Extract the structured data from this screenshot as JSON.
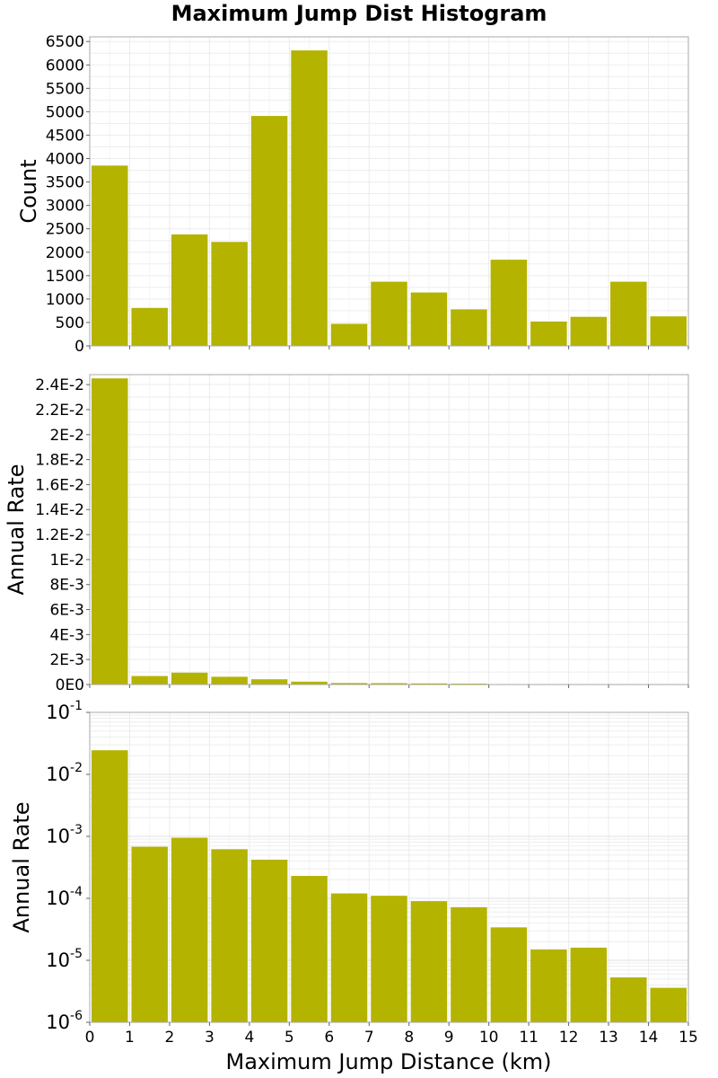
{
  "chart_data": [
    {
      "type": "bar",
      "panel": "count",
      "title": "Maximum Jump Dist Histogram",
      "ylabel": "Count",
      "xlim": [
        0,
        15
      ],
      "ylim": [
        0,
        6600
      ],
      "yscale": "linear",
      "grid": true,
      "color": "#b3b300",
      "bin_width": 1,
      "x": [
        0.5,
        1.5,
        2.5,
        3.5,
        4.5,
        5.5,
        6.5,
        7.5,
        8.5,
        9.5,
        10.5,
        11.5,
        12.5,
        13.5,
        14.5
      ],
      "values": [
        3850,
        810,
        2380,
        2220,
        4910,
        6310,
        470,
        1370,
        1140,
        780,
        1840,
        520,
        620,
        1370,
        630
      ],
      "y_ticks": [
        0,
        500,
        1000,
        1500,
        2000,
        2500,
        3000,
        3500,
        4000,
        4500,
        5000,
        5500,
        6000,
        6500
      ],
      "y_tick_labels": [
        "0",
        "500",
        "1000",
        "1500",
        "2000",
        "2500",
        "3000",
        "3500",
        "4000",
        "4500",
        "5000",
        "5500",
        "6000",
        "6500"
      ]
    },
    {
      "type": "bar",
      "panel": "rate-linear",
      "ylabel": "Annual Rate",
      "xlim": [
        0,
        15
      ],
      "ylim": [
        0,
        0.0248
      ],
      "yscale": "linear",
      "grid": true,
      "color": "#b3b300",
      "bin_width": 1,
      "x": [
        0.5,
        1.5,
        2.5,
        3.5,
        4.5,
        5.5,
        6.5,
        7.5,
        8.5,
        9.5,
        10.5,
        11.5,
        12.5,
        13.5,
        14.5
      ],
      "values": [
        0.0245,
        0.00068,
        0.00095,
        0.00062,
        0.00042,
        0.00023,
        0.00012,
        0.00011,
        9e-05,
        7.2e-05,
        3.4e-05,
        1.5e-05,
        1.6e-05,
        5.3e-06,
        3.6e-06
      ],
      "y_ticks": [
        0,
        0.002,
        0.004,
        0.006,
        0.008,
        0.01,
        0.012,
        0.014,
        0.016,
        0.018,
        0.02,
        0.022,
        0.024
      ],
      "y_tick_labels": [
        "0E0",
        "2E-3",
        "4E-3",
        "6E-3",
        "8E-3",
        "1E-2",
        "1.2E-2",
        "1.4E-2",
        "1.6E-2",
        "1.8E-2",
        "2E-2",
        "2.2E-2",
        "2.4E-2"
      ]
    },
    {
      "type": "bar",
      "panel": "rate-log",
      "ylabel": "Annual Rate",
      "xlabel": "Maximum Jump Distance (km)",
      "xlim": [
        0,
        15
      ],
      "ylim": [
        1e-06,
        0.1
      ],
      "yscale": "log",
      "grid": true,
      "color": "#b3b300",
      "bin_width": 1,
      "x": [
        0.5,
        1.5,
        2.5,
        3.5,
        4.5,
        5.5,
        6.5,
        7.5,
        8.5,
        9.5,
        10.5,
        11.5,
        12.5,
        13.5,
        14.5
      ],
      "values": [
        0.0245,
        0.00068,
        0.00095,
        0.00062,
        0.00042,
        0.00023,
        0.00012,
        0.00011,
        9e-05,
        7.2e-05,
        3.4e-05,
        1.5e-05,
        1.6e-05,
        5.3e-06,
        3.6e-06
      ],
      "y_log_ticks": [
        {
          "value": 1e-06,
          "base": "10",
          "exp": "-6"
        },
        {
          "value": 1e-05,
          "base": "10",
          "exp": "-5"
        },
        {
          "value": 0.0001,
          "base": "10",
          "exp": "-4"
        },
        {
          "value": 0.001,
          "base": "10",
          "exp": "-3"
        },
        {
          "value": 0.01,
          "base": "10",
          "exp": "-2"
        },
        {
          "value": 0.1,
          "base": "10",
          "exp": "-1"
        }
      ],
      "x_ticks": [
        0,
        1,
        2,
        3,
        4,
        5,
        6,
        7,
        8,
        9,
        10,
        11,
        12,
        13,
        14,
        15
      ],
      "x_tick_labels": [
        "0",
        "1",
        "2",
        "3",
        "4",
        "5",
        "6",
        "7",
        "8",
        "9",
        "10",
        "11",
        "12",
        "13",
        "14",
        "15"
      ]
    }
  ]
}
